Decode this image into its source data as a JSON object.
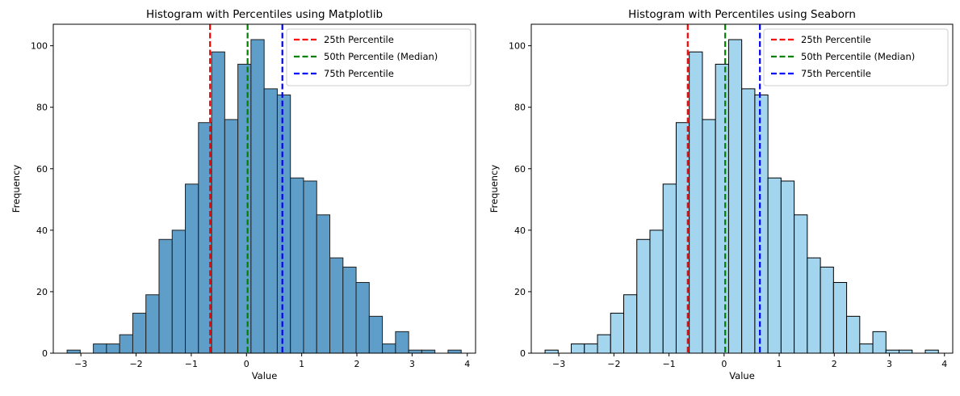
{
  "chart_data": [
    {
      "type": "bar",
      "title": "Histogram with Percentiles using Matplotlib",
      "xlabel": "Value",
      "ylabel": "Frequency",
      "xlim": [
        -3.5,
        4.15
      ],
      "ylim": [
        0,
        107
      ],
      "xticks": [
        -3,
        -2,
        -1,
        0,
        1,
        2,
        3,
        4
      ],
      "yticks": [
        0,
        20,
        40,
        60,
        80,
        100
      ],
      "grid": false,
      "bins": {
        "start": -3.25,
        "width": 0.238,
        "counts": [
          1,
          0,
          3,
          3,
          6,
          13,
          19,
          37,
          40,
          55,
          75,
          98,
          76,
          94,
          102,
          86,
          84,
          57,
          56,
          45,
          31,
          28,
          23,
          12,
          3,
          7,
          1,
          1,
          0,
          1
        ]
      },
      "bar_fill": "#5f9ec8",
      "bar_edge": "#1f1f1f",
      "percentiles": [
        {
          "label": "25th Percentile",
          "value": -0.66,
          "color": "#ff0000"
        },
        {
          "label": "50th Percentile (Median)",
          "value": 0.02,
          "color": "#008000"
        },
        {
          "label": "75th Percentile",
          "value": 0.65,
          "color": "#0000ff"
        }
      ],
      "legend": "top-right"
    },
    {
      "type": "bar",
      "title": "Histogram with Percentiles using Seaborn",
      "xlabel": "Value",
      "ylabel": "Frequency",
      "xlim": [
        -3.5,
        4.15
      ],
      "ylim": [
        0,
        107
      ],
      "xticks": [
        -3,
        -2,
        -1,
        0,
        1,
        2,
        3,
        4
      ],
      "yticks": [
        0,
        20,
        40,
        60,
        80,
        100
      ],
      "grid": false,
      "bins": {
        "start": -3.25,
        "width": 0.238,
        "counts": [
          1,
          0,
          3,
          3,
          6,
          13,
          19,
          37,
          40,
          55,
          75,
          98,
          76,
          94,
          102,
          86,
          84,
          57,
          56,
          45,
          31,
          28,
          23,
          12,
          3,
          7,
          1,
          1,
          0,
          1
        ]
      },
      "bar_fill": "#a3d6ee",
      "bar_edge": "#000000",
      "percentiles": [
        {
          "label": "25th Percentile",
          "value": -0.66,
          "color": "#ff0000"
        },
        {
          "label": "50th Percentile (Median)",
          "value": 0.02,
          "color": "#008000"
        },
        {
          "label": "75th Percentile",
          "value": 0.65,
          "color": "#0000ff"
        }
      ],
      "legend": "top-right"
    }
  ]
}
